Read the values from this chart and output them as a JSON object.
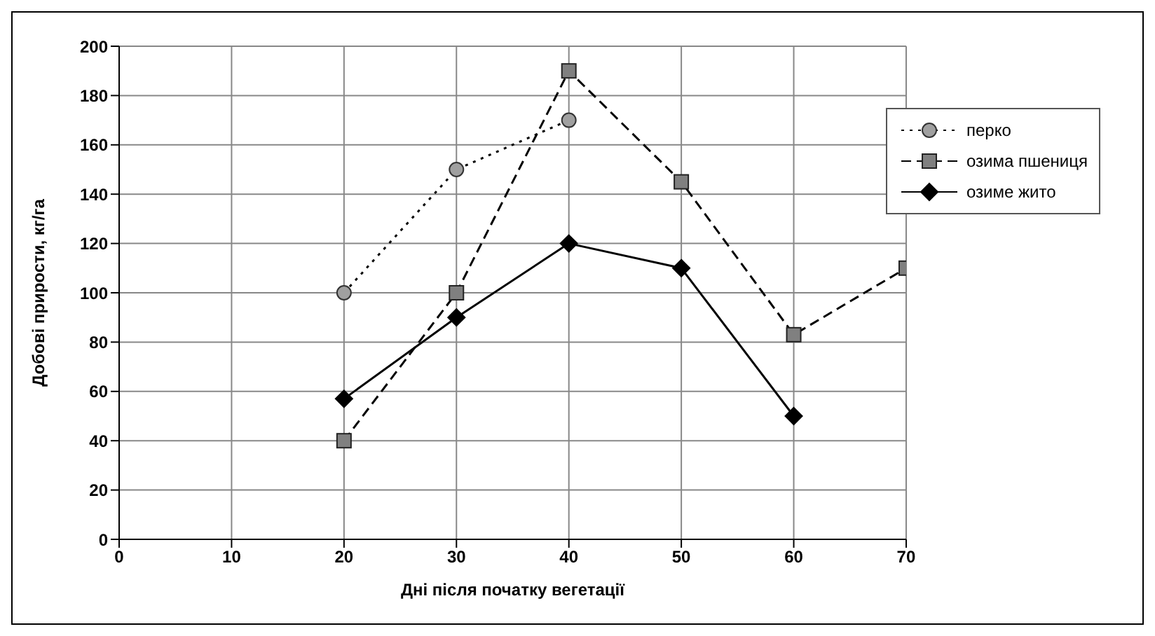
{
  "chart_data": {
    "type": "line",
    "xlabel": "Дні після початку вегетації",
    "ylabel": "Добові прирости, кг/га",
    "xlim": [
      0,
      70
    ],
    "xticks": [
      0,
      10,
      20,
      30,
      40,
      50,
      60,
      70
    ],
    "ylim": [
      0,
      200
    ],
    "yticks": [
      0,
      20,
      40,
      60,
      80,
      100,
      120,
      140,
      160,
      180,
      200
    ],
    "grid": true,
    "legend": "top right",
    "series": [
      {
        "name": "перко",
        "color": "#a0a0a0",
        "marker": "circle",
        "line_style": "dotted",
        "x": [
          20,
          30,
          40
        ],
        "values": [
          100,
          150,
          170
        ]
      },
      {
        "name": "озима пшениця",
        "color": "#808080",
        "marker": "square",
        "line_style": "dashed",
        "x": [
          20,
          30,
          40,
          50,
          60,
          70
        ],
        "values": [
          40,
          100,
          190,
          145,
          83,
          110
        ]
      },
      {
        "name": "озиме жито",
        "color": "#000000",
        "marker": "diamond",
        "line_style": "solid",
        "x": [
          20,
          30,
          40,
          50,
          60
        ],
        "values": [
          57,
          90,
          120,
          110,
          50
        ]
      }
    ]
  }
}
